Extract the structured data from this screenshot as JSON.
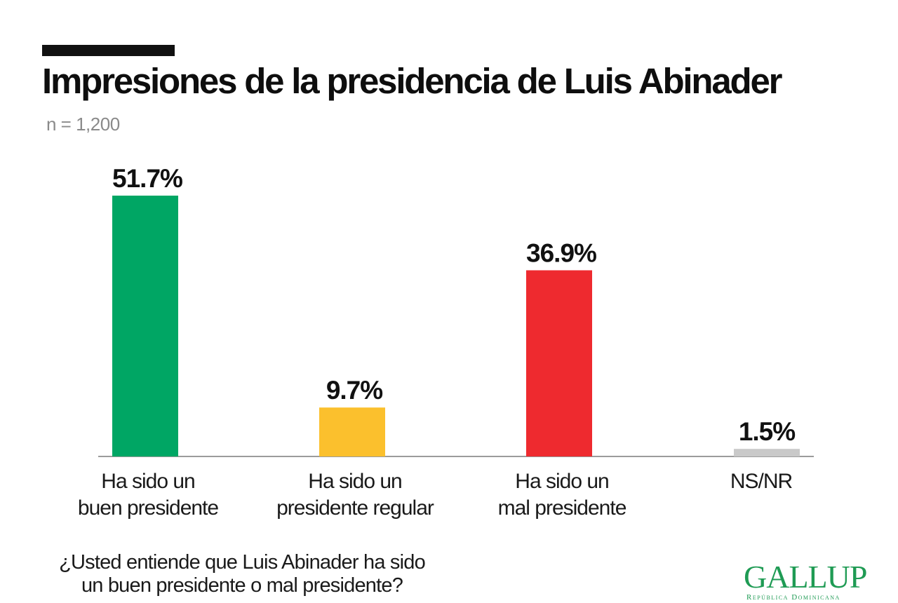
{
  "title": "Impresiones de la presidencia de Luis Abinader",
  "subtitle": "n = 1,200",
  "question_line1": "¿Usted entiende que Luis Abinader ha sido",
  "question_line2": "un buen presidente o mal presidente?",
  "logo": {
    "name": "GALLUP",
    "sub": "República Dominicana"
  },
  "chart_data": {
    "type": "bar",
    "categories": [
      [
        "Ha sido un",
        "buen presidente"
      ],
      [
        "Ha sido un",
        "presidente regular"
      ],
      [
        "Ha sido un",
        "mal presidente"
      ],
      [
        "NS/NR"
      ]
    ],
    "values": [
      51.7,
      9.7,
      36.9,
      1.5
    ],
    "value_labels": [
      "51.7%",
      "9.7%",
      "36.9%",
      "1.5%"
    ],
    "colors": [
      "#00a664",
      "#fbc02d",
      "#ee2a2f",
      "#c9c9c9"
    ],
    "ylim": [
      0,
      51.7
    ],
    "grid": false,
    "legend": "none"
  }
}
